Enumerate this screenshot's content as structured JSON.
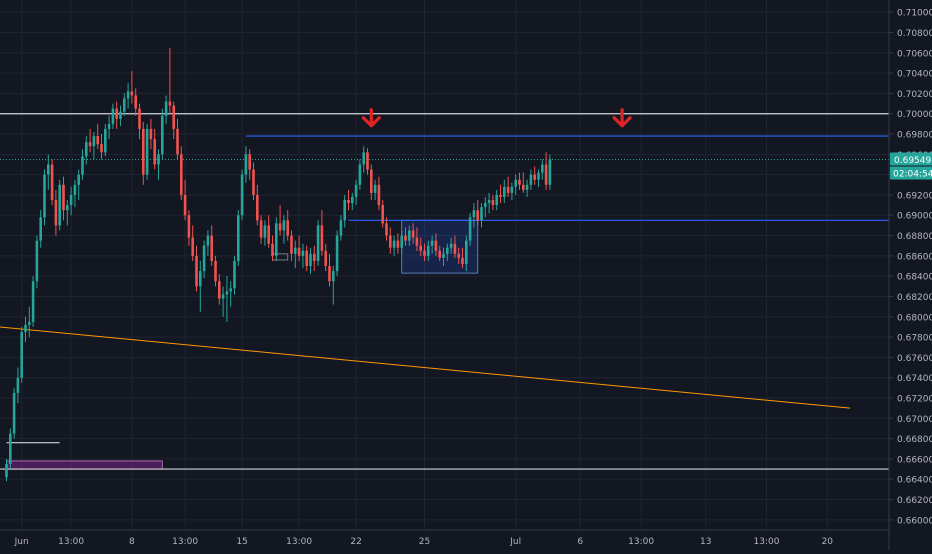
{
  "chart_data": {
    "type": "candlestick",
    "theme": {
      "background": "#131722",
      "grid": "#1f2431",
      "axis_text": "#b2b5be",
      "up": "#26a69a",
      "down": "#ef5350"
    },
    "yaxis": {
      "range": [
        0.659,
        0.7112
      ],
      "ticks": [
        "0.71000",
        "0.70800",
        "0.70600",
        "0.70400",
        "0.70200",
        "0.70000",
        "0.69800",
        "0.69600",
        "0.69400",
        "0.69200",
        "0.69000",
        "0.68800",
        "0.68600",
        "0.68400",
        "0.68200",
        "0.68000",
        "0.67800",
        "0.67600",
        "0.67400",
        "0.67200",
        "0.67000",
        "0.66800",
        "0.66600",
        "0.66400",
        "0.66200",
        "0.66000"
      ]
    },
    "xaxis": {
      "labels": [
        {
          "text": "Jun",
          "idx": 4
        },
        {
          "text": "13:00",
          "idx": 17
        },
        {
          "text": "8",
          "idx": 33
        },
        {
          "text": "13:00",
          "idx": 47
        },
        {
          "text": "15",
          "idx": 62
        },
        {
          "text": "13:00",
          "idx": 77
        },
        {
          "text": "22",
          "idx": 92
        },
        {
          "text": "25",
          "idx": 110
        },
        {
          "text": "Jul",
          "idx": 134
        },
        {
          "text": "6",
          "idx": 151
        },
        {
          "text": "13:00",
          "idx": 167
        },
        {
          "text": "13",
          "idx": 184
        },
        {
          "text": "13:00",
          "idx": 200
        },
        {
          "text": "20",
          "idx": 216
        }
      ]
    },
    "candles": [
      [
        0.6642,
        0.666,
        0.6638,
        0.6655
      ],
      [
        0.6655,
        0.669,
        0.665,
        0.6685
      ],
      [
        0.6685,
        0.673,
        0.668,
        0.6725
      ],
      [
        0.6725,
        0.675,
        0.6715,
        0.674
      ],
      [
        0.674,
        0.679,
        0.6735,
        0.6785
      ],
      [
        0.6785,
        0.68,
        0.6775,
        0.6792
      ],
      [
        0.6792,
        0.681,
        0.678,
        0.6795
      ],
      [
        0.6795,
        0.684,
        0.679,
        0.6835
      ],
      [
        0.6835,
        0.688,
        0.6828,
        0.6875
      ],
      [
        0.6875,
        0.6905,
        0.6868,
        0.6898
      ],
      [
        0.6898,
        0.6945,
        0.689,
        0.694
      ],
      [
        0.694,
        0.696,
        0.6925,
        0.695
      ],
      [
        0.695,
        0.6955,
        0.691,
        0.6915
      ],
      [
        0.6915,
        0.6925,
        0.688,
        0.689
      ],
      [
        0.689,
        0.6935,
        0.6885,
        0.693
      ],
      [
        0.693,
        0.6938,
        0.6895,
        0.6905
      ],
      [
        0.6905,
        0.6915,
        0.689,
        0.691
      ],
      [
        0.691,
        0.6928,
        0.69,
        0.692
      ],
      [
        0.692,
        0.6935,
        0.6908,
        0.693
      ],
      [
        0.693,
        0.6945,
        0.6915,
        0.694
      ],
      [
        0.694,
        0.6965,
        0.6935,
        0.6958
      ],
      [
        0.6958,
        0.6978,
        0.695,
        0.6972
      ],
      [
        0.6972,
        0.6985,
        0.6962,
        0.6968
      ],
      [
        0.6968,
        0.6982,
        0.6955,
        0.6978
      ],
      [
        0.6978,
        0.699,
        0.6965,
        0.697
      ],
      [
        0.697,
        0.698,
        0.6955,
        0.6962
      ],
      [
        0.6962,
        0.699,
        0.6958,
        0.6985
      ],
      [
        0.6985,
        0.6998,
        0.6975,
        0.699
      ],
      [
        0.699,
        0.701,
        0.6985,
        0.7005
      ],
      [
        0.7005,
        0.7012,
        0.6985,
        0.6995
      ],
      [
        0.6995,
        0.7008,
        0.6988,
        0.7002
      ],
      [
        0.7002,
        0.702,
        0.6998,
        0.7015
      ],
      [
        0.7015,
        0.703,
        0.7005,
        0.7022
      ],
      [
        0.7022,
        0.7042,
        0.701,
        0.7018
      ],
      [
        0.7018,
        0.7025,
        0.6998,
        0.7005
      ],
      [
        0.7005,
        0.701,
        0.6975,
        0.6985
      ],
      [
        0.6985,
        0.6992,
        0.693,
        0.694
      ],
      [
        0.694,
        0.699,
        0.6935,
        0.6985
      ],
      [
        0.6985,
        0.6995,
        0.6965,
        0.6975
      ],
      [
        0.6975,
        0.6985,
        0.6945,
        0.695
      ],
      [
        0.695,
        0.6965,
        0.6935,
        0.696
      ],
      [
        0.696,
        0.7005,
        0.6955,
        0.6998
      ],
      [
        0.6998,
        0.7018,
        0.699,
        0.7012
      ],
      [
        0.7012,
        0.7065,
        0.7,
        0.7008
      ],
      [
        0.7008,
        0.7012,
        0.6975,
        0.6985
      ],
      [
        0.6985,
        0.6995,
        0.6955,
        0.696
      ],
      [
        0.696,
        0.6968,
        0.6915,
        0.692
      ],
      [
        0.692,
        0.6935,
        0.6895,
        0.69
      ],
      [
        0.69,
        0.6905,
        0.687,
        0.6878
      ],
      [
        0.6878,
        0.689,
        0.6855,
        0.686
      ],
      [
        0.686,
        0.687,
        0.6825,
        0.683
      ],
      [
        0.683,
        0.6855,
        0.6805,
        0.6845
      ],
      [
        0.6845,
        0.6875,
        0.6838,
        0.687
      ],
      [
        0.687,
        0.6885,
        0.686,
        0.688
      ],
      [
        0.688,
        0.689,
        0.685,
        0.6855
      ],
      [
        0.6855,
        0.686,
        0.683,
        0.6835
      ],
      [
        0.6835,
        0.6842,
        0.6812,
        0.6818
      ],
      [
        0.6818,
        0.683,
        0.68,
        0.6822
      ],
      [
        0.6822,
        0.684,
        0.6795,
        0.6825
      ],
      [
        0.6825,
        0.6835,
        0.681,
        0.6828
      ],
      [
        0.6828,
        0.686,
        0.6822,
        0.6855
      ],
      [
        0.6855,
        0.6905,
        0.685,
        0.69
      ],
      [
        0.69,
        0.6945,
        0.6895,
        0.694
      ],
      [
        0.694,
        0.6968,
        0.6932,
        0.696
      ],
      [
        0.696,
        0.6965,
        0.6935,
        0.6945
      ],
      [
        0.6945,
        0.6952,
        0.6915,
        0.692
      ],
      [
        0.692,
        0.693,
        0.689,
        0.6895
      ],
      [
        0.6895,
        0.69,
        0.6872,
        0.6878
      ],
      [
        0.6878,
        0.6895,
        0.687,
        0.689
      ],
      [
        0.689,
        0.69,
        0.6868,
        0.6872
      ],
      [
        0.6872,
        0.688,
        0.6855,
        0.686
      ],
      [
        0.686,
        0.6898,
        0.6855,
        0.6892
      ],
      [
        0.6892,
        0.691,
        0.688,
        0.6885
      ],
      [
        0.6885,
        0.69,
        0.6872,
        0.6895
      ],
      [
        0.6895,
        0.6905,
        0.6875,
        0.688
      ],
      [
        0.688,
        0.6885,
        0.6855,
        0.6862
      ],
      [
        0.6862,
        0.6875,
        0.6848,
        0.6868
      ],
      [
        0.6868,
        0.688,
        0.6855,
        0.686
      ],
      [
        0.686,
        0.6872,
        0.6848,
        0.6865
      ],
      [
        0.6865,
        0.687,
        0.6845,
        0.685
      ],
      [
        0.685,
        0.6868,
        0.6842,
        0.6862
      ],
      [
        0.6862,
        0.687,
        0.6845,
        0.6855
      ],
      [
        0.6855,
        0.6895,
        0.685,
        0.689
      ],
      [
        0.689,
        0.6905,
        0.686,
        0.6865
      ],
      [
        0.6865,
        0.6872,
        0.6845,
        0.685
      ],
      [
        0.685,
        0.6862,
        0.683,
        0.6835
      ],
      [
        0.6835,
        0.685,
        0.6812,
        0.6845
      ],
      [
        0.6845,
        0.6885,
        0.684,
        0.688
      ],
      [
        0.688,
        0.69,
        0.6875,
        0.6895
      ],
      [
        0.6895,
        0.692,
        0.6888,
        0.6915
      ],
      [
        0.6915,
        0.6925,
        0.6905,
        0.6912
      ],
      [
        0.6912,
        0.6922,
        0.6905,
        0.6918
      ],
      [
        0.6918,
        0.6935,
        0.691,
        0.693
      ],
      [
        0.693,
        0.6955,
        0.6925,
        0.695
      ],
      [
        0.695,
        0.6968,
        0.6942,
        0.6962
      ],
      [
        0.6962,
        0.6966,
        0.694,
        0.6945
      ],
      [
        0.6945,
        0.695,
        0.6915,
        0.6922
      ],
      [
        0.6922,
        0.6935,
        0.6915,
        0.693
      ],
      [
        0.693,
        0.6938,
        0.6905,
        0.691
      ],
      [
        0.691,
        0.6915,
        0.6888,
        0.6892
      ],
      [
        0.6892,
        0.6898,
        0.6875,
        0.688
      ],
      [
        0.688,
        0.6888,
        0.6862,
        0.6868
      ],
      [
        0.6868,
        0.688,
        0.686,
        0.6875
      ],
      [
        0.6875,
        0.6882,
        0.6862,
        0.6868
      ],
      [
        0.6868,
        0.6885,
        0.6862,
        0.688
      ],
      [
        0.688,
        0.6888,
        0.687,
        0.6875
      ],
      [
        0.6875,
        0.689,
        0.687,
        0.6885
      ],
      [
        0.6885,
        0.6892,
        0.6872,
        0.6878
      ],
      [
        0.6878,
        0.6888,
        0.6865,
        0.687
      ],
      [
        0.687,
        0.6878,
        0.686,
        0.6865
      ],
      [
        0.6865,
        0.6872,
        0.6855,
        0.686
      ],
      [
        0.686,
        0.6875,
        0.6855,
        0.687
      ],
      [
        0.687,
        0.688,
        0.6862,
        0.6875
      ],
      [
        0.6875,
        0.6882,
        0.686,
        0.6865
      ],
      [
        0.6865,
        0.687,
        0.6855,
        0.6858
      ],
      [
        0.6858,
        0.6868,
        0.685,
        0.6862
      ],
      [
        0.6862,
        0.6872,
        0.6855,
        0.6868
      ],
      [
        0.6868,
        0.6878,
        0.6862,
        0.6872
      ],
      [
        0.6872,
        0.688,
        0.6858,
        0.6862
      ],
      [
        0.6862,
        0.6868,
        0.6852,
        0.6858
      ],
      [
        0.6858,
        0.6868,
        0.6848,
        0.6852
      ],
      [
        0.6852,
        0.688,
        0.6845,
        0.6875
      ],
      [
        0.6875,
        0.6902,
        0.687,
        0.6898
      ],
      [
        0.6898,
        0.6912,
        0.6888,
        0.6905
      ],
      [
        0.6905,
        0.6915,
        0.689,
        0.6895
      ],
      [
        0.6895,
        0.6912,
        0.6888,
        0.6908
      ],
      [
        0.6908,
        0.6918,
        0.6898,
        0.6912
      ],
      [
        0.6912,
        0.6922,
        0.6902,
        0.6915
      ],
      [
        0.6915,
        0.692,
        0.6905,
        0.691
      ],
      [
        0.691,
        0.6925,
        0.6905,
        0.692
      ],
      [
        0.692,
        0.693,
        0.6912,
        0.6918
      ],
      [
        0.6918,
        0.6935,
        0.6912,
        0.6928
      ],
      [
        0.6928,
        0.6938,
        0.6918,
        0.6922
      ],
      [
        0.6922,
        0.6932,
        0.6915,
        0.6928
      ],
      [
        0.6928,
        0.694,
        0.692,
        0.6935
      ],
      [
        0.6935,
        0.6942,
        0.6925,
        0.693
      ],
      [
        0.693,
        0.6942,
        0.6922,
        0.6925
      ],
      [
        0.6925,
        0.6935,
        0.6918,
        0.693
      ],
      [
        0.693,
        0.6945,
        0.6925,
        0.694
      ],
      [
        0.694,
        0.6948,
        0.693,
        0.6935
      ],
      [
        0.6935,
        0.6945,
        0.6928,
        0.6942
      ],
      [
        0.6942,
        0.6955,
        0.6935,
        0.695
      ],
      [
        0.695,
        0.6962,
        0.6925,
        0.693
      ],
      [
        0.693,
        0.696,
        0.6925,
        0.6955
      ]
    ],
    "horizontal_lines": [
      {
        "price": 0.7,
        "color": "#d1d4dc",
        "from_idx": -2,
        "to": "right"
      },
      {
        "price": 0.6978,
        "color": "#2962ff",
        "from_idx": 63,
        "to": "right"
      },
      {
        "price": 0.6895,
        "color": "#2962ff",
        "from_idx": 90,
        "to": "right"
      },
      {
        "price": 0.665,
        "color": "#d1d4dc",
        "from_idx": -2,
        "to": "right"
      },
      {
        "price": 0.6676,
        "color": "#d1d4dc",
        "from_idx": 0,
        "to_idx": 14
      }
    ],
    "trendline": {
      "color": "#ff9800",
      "p1": {
        "idx": -2,
        "price": 0.679
      },
      "p2": {
        "idx": 222,
        "price": 0.671
      }
    },
    "zones": [
      {
        "name": "consolidation-box",
        "x0_idx": 104,
        "x1_idx": 124,
        "y_top": 0.6895,
        "y_bot": 0.6843,
        "fill": "#2962ff",
        "opacity": 0.18,
        "stroke": "#5b7fb8"
      },
      {
        "name": "purple-zone",
        "x0_idx": 0,
        "x1_idx": 41,
        "y_top": 0.6658,
        "y_bot": 0.665,
        "fill": "#9c27b0",
        "opacity": 0.4,
        "stroke": "#b06ab3"
      },
      {
        "name": "small-box-left",
        "x0_idx": 70,
        "x1_idx": 74,
        "y_top": 0.6862,
        "y_bot": 0.6856,
        "fill": "#131722",
        "opacity": 0,
        "stroke": "#787b86"
      }
    ],
    "arrows": [
      {
        "idx": 96,
        "price": 0.7,
        "color": "#e02424"
      },
      {
        "idx": 162,
        "price": 0.7,
        "color": "#e02424"
      }
    ],
    "last_price": {
      "price": "0.69549",
      "countdown": "02:04:54",
      "color": "#26a69a"
    }
  }
}
